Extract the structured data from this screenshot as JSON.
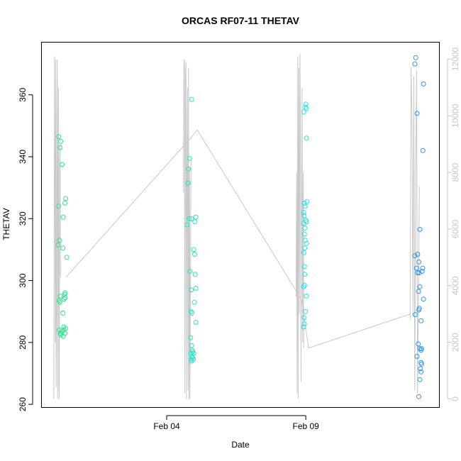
{
  "chart_data": {
    "type": "scatter",
    "title": "ORCAS RF07-11 THETAV",
    "xlabel": "Date",
    "ylabel": "THETAV",
    "ylim": [
      259,
      377
    ],
    "yticks": [
      260,
      280,
      300,
      320,
      340,
      360
    ],
    "xticks": [
      {
        "label": "Feb 04",
        "day": 4
      },
      {
        "label": "Feb 09",
        "day": 9
      }
    ],
    "xlim_days": [
      -0.5,
      13.8
    ],
    "secondary_axis": {
      "color": "#c8c8c8",
      "ylim": [
        -300,
        12600
      ],
      "ticks": [
        0,
        2000,
        4000,
        6000,
        8000,
        10000,
        12000
      ]
    },
    "trace_color": "#c8c8c8",
    "flights": [
      {
        "x_center": 0.15,
        "x_start": -0.06,
        "x_end": 0.38,
        "color": "#2ee68a",
        "alt_profile": [
          0,
          4200,
          12100,
          9000,
          2000,
          12000,
          400,
          3000,
          10000,
          12000,
          0,
          7000,
          11000,
          500,
          0,
          8500,
          9000,
          4300
        ],
        "points": [
          {
            "dx": -0.03,
            "y": 346.5
          },
          {
            "dx": 0.04,
            "y": 345
          },
          {
            "dx": 0.02,
            "y": 343
          },
          {
            "dx": 0.09,
            "y": 337.5
          },
          {
            "dx": 0.22,
            "y": 326.5
          },
          {
            "dx": 0.19,
            "y": 325
          },
          {
            "dx": -0.03,
            "y": 324
          },
          {
            "dx": 0.13,
            "y": 320.5
          },
          {
            "dx": 0.0,
            "y": 313
          },
          {
            "dx": -0.05,
            "y": 311.5
          },
          {
            "dx": 0.12,
            "y": 310.5
          },
          {
            "dx": 0.26,
            "y": 307.5
          },
          {
            "dx": 0.2,
            "y": 296
          },
          {
            "dx": 0.18,
            "y": 295.5
          },
          {
            "dx": 0.02,
            "y": 295
          },
          {
            "dx": 0.2,
            "y": 294.5
          },
          {
            "dx": 0.16,
            "y": 294
          },
          {
            "dx": -0.02,
            "y": 293.5
          },
          {
            "dx": 0.01,
            "y": 293
          },
          {
            "dx": 0.12,
            "y": 289.5
          },
          {
            "dx": 0.15,
            "y": 285
          },
          {
            "dx": 0.22,
            "y": 284.5
          },
          {
            "dx": -0.01,
            "y": 284
          },
          {
            "dx": 0.15,
            "y": 284
          },
          {
            "dx": 0.08,
            "y": 283.5
          },
          {
            "dx": 0.02,
            "y": 283
          },
          {
            "dx": 0.19,
            "y": 283
          },
          {
            "dx": 0.04,
            "y": 282.5
          },
          {
            "dx": 0.13,
            "y": 282
          }
        ]
      },
      {
        "x_center": 4.85,
        "x_start": 4.6,
        "x_end": 5.1,
        "color": "#22e8c3",
        "alt_profile": [
          7300,
          11800,
          12000,
          200,
          11500,
          11900,
          0,
          8000,
          11000,
          300,
          11700,
          0,
          8200,
          0,
          4000,
          8500
        ],
        "points": [
          {
            "dx": 0.05,
            "y": 358.5
          },
          {
            "dx": -0.03,
            "y": 339.5
          },
          {
            "dx": -0.07,
            "y": 336
          },
          {
            "dx": -0.08,
            "y": 331.5
          },
          {
            "dx": 0.2,
            "y": 320.5
          },
          {
            "dx": -0.04,
            "y": 320
          },
          {
            "dx": 0.04,
            "y": 320
          },
          {
            "dx": 0.16,
            "y": 319
          },
          {
            "dx": -0.12,
            "y": 318
          },
          {
            "dx": 0.12,
            "y": 310
          },
          {
            "dx": 0.15,
            "y": 308.5
          },
          {
            "dx": -0.02,
            "y": 303
          },
          {
            "dx": 0.17,
            "y": 302
          },
          {
            "dx": 0.2,
            "y": 297.5
          },
          {
            "dx": 0.03,
            "y": 297
          },
          {
            "dx": 0.14,
            "y": 293
          },
          {
            "dx": 0.02,
            "y": 290
          },
          {
            "dx": 0.06,
            "y": 289.5
          },
          {
            "dx": 0.2,
            "y": 286.5
          },
          {
            "dx": 0.01,
            "y": 281.5
          },
          {
            "dx": 0.05,
            "y": 279
          },
          {
            "dx": 0.06,
            "y": 277.5
          },
          {
            "dx": 0.09,
            "y": 277
          },
          {
            "dx": 0.02,
            "y": 276.5
          },
          {
            "dx": 0.12,
            "y": 276.5
          },
          {
            "dx": 0.06,
            "y": 275.5
          },
          {
            "dx": 0.08,
            "y": 275
          },
          {
            "dx": 0.03,
            "y": 274.5
          },
          {
            "dx": 0.11,
            "y": 274.5
          },
          {
            "dx": 0.05,
            "y": 274
          }
        ]
      },
      {
        "x_center": 8.9,
        "x_start": 8.65,
        "x_end": 9.15,
        "color": "#22e4f0",
        "alt_profile": [
          3600,
          8000,
          200,
          12100,
          0,
          11700,
          3000,
          12200,
          9500,
          600,
          7400,
          11000,
          2000,
          8000,
          1800
        ],
        "points": [
          {
            "dx": 0.1,
            "y": 357
          },
          {
            "dx": 0.09,
            "y": 356
          },
          {
            "dx": 0.12,
            "y": 355.5
          },
          {
            "dx": 0.03,
            "y": 354.5
          },
          {
            "dx": 0.12,
            "y": 346
          },
          {
            "dx": 0.14,
            "y": 325.5
          },
          {
            "dx": 0.05,
            "y": 325
          },
          {
            "dx": 0.08,
            "y": 324
          },
          {
            "dx": 0.02,
            "y": 322
          },
          {
            "dx": 0.04,
            "y": 321
          },
          {
            "dx": 0.1,
            "y": 319.5
          },
          {
            "dx": 0.12,
            "y": 319
          },
          {
            "dx": 0.01,
            "y": 318.5
          },
          {
            "dx": 0.07,
            "y": 317
          },
          {
            "dx": 0.05,
            "y": 315
          },
          {
            "dx": 0.08,
            "y": 313
          },
          {
            "dx": 0.13,
            "y": 312
          },
          {
            "dx": 0.06,
            "y": 310.5
          },
          {
            "dx": 0.03,
            "y": 309
          },
          {
            "dx": 0.05,
            "y": 304.5
          },
          {
            "dx": 0.06,
            "y": 302
          },
          {
            "dx": 0.05,
            "y": 298.5
          },
          {
            "dx": 0.02,
            "y": 298
          },
          {
            "dx": 0.12,
            "y": 295
          },
          {
            "dx": 0.09,
            "y": 290
          },
          {
            "dx": 0.04,
            "y": 288
          },
          {
            "dx": 0.05,
            "y": 286
          },
          {
            "dx": 0.02,
            "y": 285
          }
        ]
      },
      {
        "x_center": 12.9,
        "x_start": 12.75,
        "x_end": 13.35,
        "color": "#2f96f0",
        "alt_profile": [
          2800,
          11700,
          10000,
          3000,
          11400,
          300,
          8000,
          11600,
          200,
          3600,
          7500
        ],
        "points": [
          {
            "dx": 0.05,
            "y": 372
          },
          {
            "dx": 0.02,
            "y": 370
          },
          {
            "dx": 0.33,
            "y": 363.5
          },
          {
            "dx": 0.1,
            "y": 354
          },
          {
            "dx": 0.31,
            "y": 342
          },
          {
            "dx": 0.2,
            "y": 316.5
          },
          {
            "dx": 0.02,
            "y": 308
          },
          {
            "dx": 0.12,
            "y": 308.5
          },
          {
            "dx": 0.16,
            "y": 306
          },
          {
            "dx": 0.3,
            "y": 304
          },
          {
            "dx": 0.08,
            "y": 304
          },
          {
            "dx": 0.28,
            "y": 303
          },
          {
            "dx": 0.17,
            "y": 302.5
          },
          {
            "dx": 0.12,
            "y": 302.5
          },
          {
            "dx": 0.2,
            "y": 298
          },
          {
            "dx": 0.15,
            "y": 296.5
          },
          {
            "dx": 0.33,
            "y": 294
          },
          {
            "dx": 0.18,
            "y": 291
          },
          {
            "dx": 0.16,
            "y": 290.5
          },
          {
            "dx": 0.03,
            "y": 289
          },
          {
            "dx": 0.24,
            "y": 287
          },
          {
            "dx": 0.14,
            "y": 279.5
          },
          {
            "dx": 0.26,
            "y": 278
          },
          {
            "dx": 0.2,
            "y": 278
          },
          {
            "dx": 0.24,
            "y": 277.5
          },
          {
            "dx": 0.1,
            "y": 275.5
          },
          {
            "dx": 0.24,
            "y": 273.5
          },
          {
            "dx": 0.26,
            "y": 273
          },
          {
            "dx": 0.22,
            "y": 271.5
          },
          {
            "dx": 0.24,
            "y": 270.5
          },
          {
            "dx": 0.2,
            "y": 268
          },
          {
            "dx": 0.16,
            "y": 262.5
          }
        ]
      }
    ],
    "connectors": [
      {
        "day": 0.38,
        "alt": 4300
      },
      {
        "day": 4.85,
        "alt": 9200
      },
      {
        "day": 5.1,
        "alt": 9500
      },
      {
        "day": 8.85,
        "alt": 3500
      },
      {
        "day": 9.1,
        "alt": 1800
      },
      {
        "day": 12.75,
        "alt": 3000
      }
    ]
  }
}
